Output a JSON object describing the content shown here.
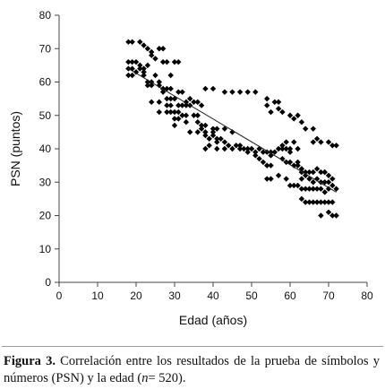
{
  "chart_data": {
    "type": "scatter",
    "xlabel": "Edad (años)",
    "ylabel": "PSN (puntos)",
    "xlim": [
      0,
      80
    ],
    "ylim": [
      0,
      80
    ],
    "xticks": [
      "0",
      "10",
      "20",
      "30",
      "40",
      "50",
      "60",
      "70",
      "80"
    ],
    "yticks": [
      "0",
      "10",
      "20",
      "30",
      "40",
      "50",
      "60",
      "70",
      "80"
    ],
    "grid": false,
    "legend": "none",
    "marker": "diamond",
    "marker_color": "#000000",
    "trendline": {
      "x": [
        18,
        72
      ],
      "y": [
        64,
        27
      ]
    },
    "points": [
      [
        18,
        72
      ],
      [
        19,
        72
      ],
      [
        21,
        72
      ],
      [
        22,
        71
      ],
      [
        23,
        70
      ],
      [
        24,
        69
      ],
      [
        26,
        70
      ],
      [
        27,
        70
      ],
      [
        24,
        68
      ],
      [
        25,
        67
      ],
      [
        23,
        65
      ],
      [
        27,
        66
      ],
      [
        28,
        66
      ],
      [
        30,
        66
      ],
      [
        31,
        66
      ],
      [
        18,
        66
      ],
      [
        19,
        66
      ],
      [
        20,
        66
      ],
      [
        21,
        65
      ],
      [
        22,
        64
      ],
      [
        18,
        64
      ],
      [
        19,
        64
      ],
      [
        20,
        63
      ],
      [
        21,
        64
      ],
      [
        22,
        63
      ],
      [
        18,
        62
      ],
      [
        19,
        62
      ],
      [
        22,
        62
      ],
      [
        23,
        60
      ],
      [
        24,
        60
      ],
      [
        25,
        62
      ],
      [
        26,
        60
      ],
      [
        27,
        58
      ],
      [
        23,
        59
      ],
      [
        24,
        59
      ],
      [
        26,
        59
      ],
      [
        27,
        57
      ],
      [
        28,
        58
      ],
      [
        29,
        62
      ],
      [
        29,
        58
      ],
      [
        31,
        57
      ],
      [
        32,
        57
      ],
      [
        28,
        55
      ],
      [
        29,
        55
      ],
      [
        30,
        55
      ],
      [
        34,
        55
      ],
      [
        33,
        54
      ],
      [
        35,
        54
      ],
      [
        36,
        54
      ],
      [
        37,
        53
      ],
      [
        28,
        53
      ],
      [
        29,
        53
      ],
      [
        31,
        53
      ],
      [
        32,
        53
      ],
      [
        33,
        53
      ],
      [
        34,
        53
      ],
      [
        24,
        54
      ],
      [
        26,
        54
      ],
      [
        26,
        51
      ],
      [
        28,
        51
      ],
      [
        29,
        51
      ],
      [
        30,
        51
      ],
      [
        31,
        51
      ],
      [
        32,
        50
      ],
      [
        33,
        50
      ],
      [
        35,
        50
      ],
      [
        36,
        50
      ],
      [
        30,
        49
      ],
      [
        31,
        49
      ],
      [
        33,
        48
      ],
      [
        30,
        47
      ],
      [
        36,
        48
      ],
      [
        37,
        47
      ],
      [
        38,
        47
      ],
      [
        37,
        46
      ],
      [
        38,
        45
      ],
      [
        40,
        46
      ],
      [
        40,
        45
      ],
      [
        34,
        45
      ],
      [
        36,
        45
      ],
      [
        38,
        44
      ],
      [
        39,
        43
      ],
      [
        40,
        44
      ],
      [
        41,
        43
      ],
      [
        42,
        43
      ],
      [
        43,
        42
      ],
      [
        41,
        42
      ],
      [
        44,
        41
      ],
      [
        46,
        41
      ],
      [
        47,
        41
      ],
      [
        48,
        40
      ],
      [
        49,
        40
      ],
      [
        50,
        40
      ],
      [
        51,
        39
      ],
      [
        52,
        40
      ],
      [
        53,
        39
      ],
      [
        54,
        39
      ],
      [
        55,
        39
      ],
      [
        38,
        58
      ],
      [
        40,
        58
      ],
      [
        43,
        57
      ],
      [
        45,
        57
      ],
      [
        47,
        57
      ],
      [
        49,
        57
      ],
      [
        51,
        57
      ],
      [
        41,
        46
      ],
      [
        43,
        46
      ],
      [
        45,
        45
      ],
      [
        39,
        41
      ],
      [
        38,
        40
      ],
      [
        41,
        40
      ],
      [
        43,
        40
      ],
      [
        45,
        40
      ],
      [
        47,
        40
      ],
      [
        49,
        39
      ],
      [
        51,
        38
      ],
      [
        52,
        37
      ],
      [
        53,
        36
      ],
      [
        54,
        35
      ],
      [
        55,
        35
      ],
      [
        54,
        55
      ],
      [
        56,
        54
      ],
      [
        57,
        54
      ],
      [
        57,
        52
      ],
      [
        58,
        51
      ],
      [
        54,
        53
      ],
      [
        55,
        51
      ],
      [
        60,
        50
      ],
      [
        61,
        49
      ],
      [
        62,
        50
      ],
      [
        63,
        48
      ],
      [
        64,
        46
      ],
      [
        66,
        46
      ],
      [
        67,
        43
      ],
      [
        66,
        42
      ],
      [
        68,
        42
      ],
      [
        55,
        38
      ],
      [
        56,
        39
      ],
      [
        57,
        40
      ],
      [
        58,
        41
      ],
      [
        59,
        40
      ],
      [
        60,
        40
      ],
      [
        61,
        42
      ],
      [
        62,
        40
      ],
      [
        58,
        37
      ],
      [
        59,
        36
      ],
      [
        60,
        36
      ],
      [
        61,
        35
      ],
      [
        62,
        35
      ],
      [
        63,
        34
      ],
      [
        64,
        33
      ],
      [
        65,
        33
      ],
      [
        66,
        33
      ],
      [
        67,
        34
      ],
      [
        68,
        33
      ],
      [
        69,
        33
      ],
      [
        70,
        32
      ],
      [
        54,
        31
      ],
      [
        55,
        31
      ],
      [
        57,
        32
      ],
      [
        59,
        31
      ],
      [
        60,
        29
      ],
      [
        61,
        29
      ],
      [
        62,
        29
      ],
      [
        63,
        28
      ],
      [
        64,
        28
      ],
      [
        65,
        28
      ],
      [
        66,
        28
      ],
      [
        67,
        28
      ],
      [
        68,
        28
      ],
      [
        69,
        27
      ],
      [
        70,
        28
      ],
      [
        71,
        29
      ],
      [
        63,
        31
      ],
      [
        64,
        32
      ],
      [
        65,
        31
      ],
      [
        66,
        30
      ],
      [
        67,
        31
      ],
      [
        68,
        30
      ],
      [
        69,
        30
      ],
      [
        70,
        30
      ],
      [
        71,
        31
      ],
      [
        72,
        28
      ],
      [
        63,
        25
      ],
      [
        64,
        24
      ],
      [
        65,
        24
      ],
      [
        66,
        24
      ],
      [
        67,
        24
      ],
      [
        68,
        24
      ],
      [
        69,
        24
      ],
      [
        70,
        24
      ],
      [
        71,
        24
      ],
      [
        68,
        20
      ],
      [
        70,
        21
      ],
      [
        71,
        20
      ],
      [
        72,
        20
      ],
      [
        70,
        42
      ],
      [
        71,
        41
      ],
      [
        72,
        41
      ],
      [
        69,
        33
      ],
      [
        62,
        36
      ],
      [
        63,
        33
      ],
      [
        58,
        40
      ],
      [
        59,
        42
      ],
      [
        60,
        39
      ]
    ]
  },
  "caption": {
    "label": "Figura 3.",
    "text_before_n": " Correlación entre los resultados de la prueba de símbolos y números (PSN) y la edad (",
    "n_symbol": "n",
    "text_after_n": "= 520)."
  }
}
